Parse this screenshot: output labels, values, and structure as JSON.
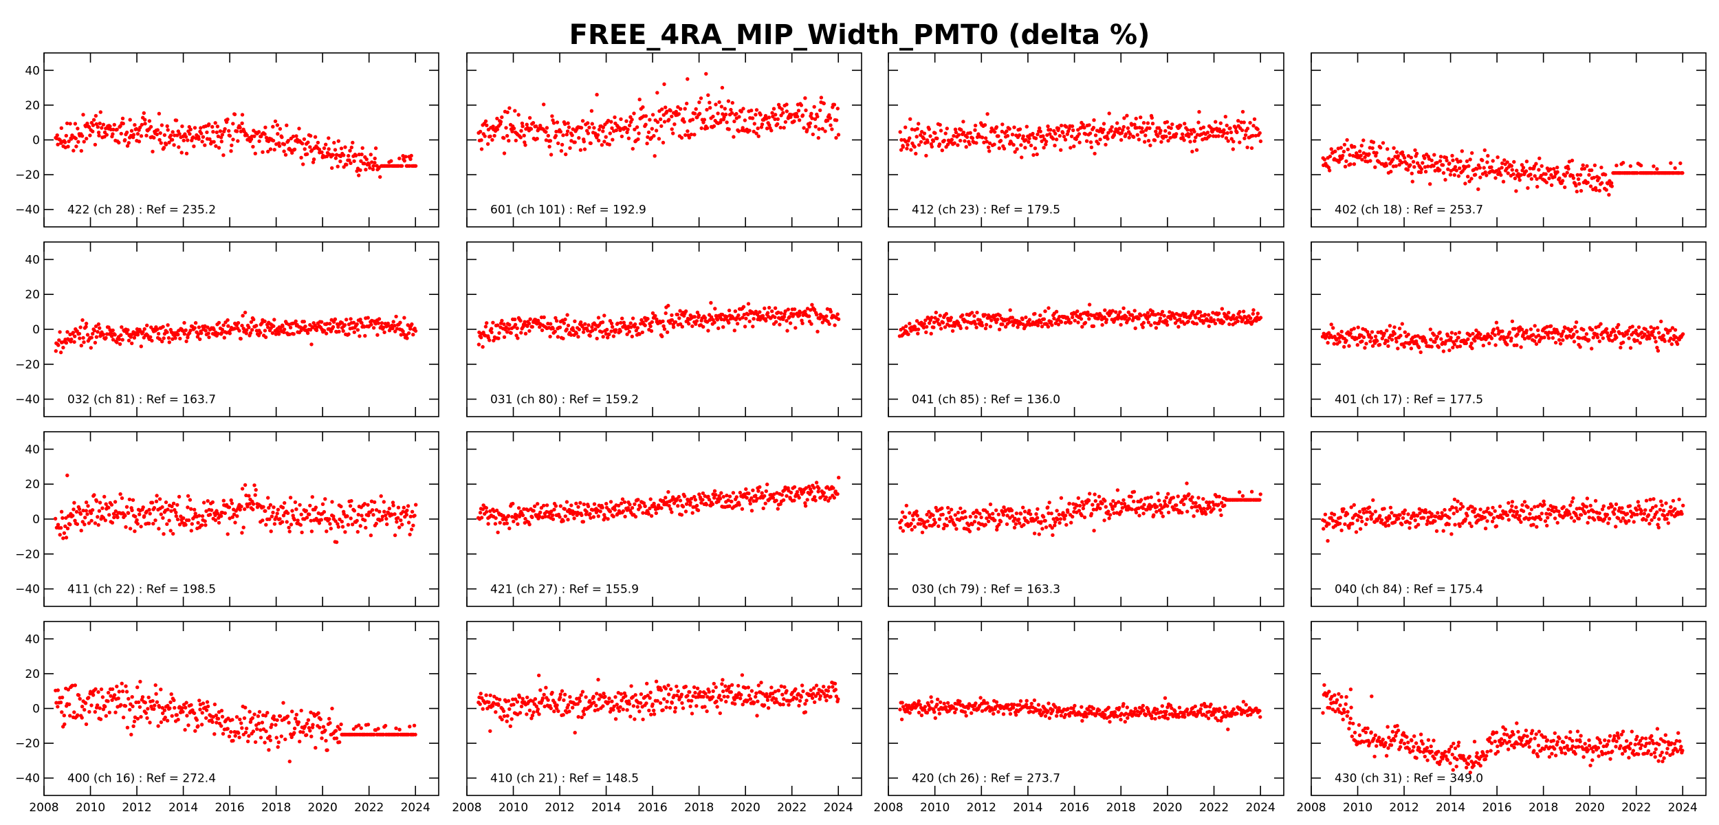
{
  "chart_data": {
    "type": "scatter",
    "title": "FREE_4RA_MIP_Width_PMT0 (delta %)",
    "layout": "4x4 grid of subplots",
    "xlabel": "",
    "ylabel": "",
    "xlim": [
      2008,
      2025
    ],
    "ylim": [
      -50,
      50
    ],
    "xticks": [
      2008,
      2010,
      2012,
      2014,
      2016,
      2018,
      2020,
      2022,
      2024
    ],
    "yticks": [
      -40,
      -20,
      0,
      20,
      40
    ],
    "xtick_labels": [
      "2008",
      "2010",
      "2012",
      "2014",
      "2016",
      "2018",
      "2020",
      "2022",
      "2024"
    ],
    "ytick_labels": [
      "−40",
      "−20",
      "0",
      "20",
      "40"
    ],
    "grid": false,
    "marker_color": "#ff0000",
    "x_start": 2008.5,
    "x_end": 2024.0,
    "panels": [
      {
        "label": "422 (ch 28) : Ref = 235.2",
        "trend_x": [
          2008.5,
          2010,
          2012,
          2014,
          2016,
          2018,
          2020,
          2021,
          2022,
          2024
        ],
        "trend_y": [
          2,
          6,
          4,
          2,
          3,
          0,
          -6,
          -10,
          -13,
          -15
        ],
        "spread": 4.5,
        "flat_from": 2022.5,
        "flat_value": -15
      },
      {
        "label": "601 (ch 101) : Ref = 192.9",
        "trend_x": [
          2008.5,
          2010,
          2012,
          2014,
          2016,
          2018,
          2019,
          2020,
          2022,
          2024
        ],
        "trend_y": [
          5,
          5,
          4,
          5,
          9,
          13,
          15,
          11,
          13,
          12
        ],
        "spread": 5.5,
        "outliers": [
          [
            2013.6,
            26
          ],
          [
            2016.5,
            32
          ],
          [
            2017.5,
            35
          ],
          [
            2018.3,
            38
          ],
          [
            2019.0,
            30
          ]
        ]
      },
      {
        "label": "412 (ch 23) : Ref = 179.5",
        "trend_x": [
          2008.5,
          2010,
          2012,
          2014,
          2016,
          2018,
          2020,
          2022,
          2024
        ],
        "trend_y": [
          0,
          1,
          2,
          1,
          3,
          4,
          5,
          4,
          3
        ],
        "spread": 4.5
      },
      {
        "label": "402 (ch 18) : Ref = 253.7",
        "trend_x": [
          2008.5,
          2009.5,
          2010.5,
          2012,
          2014,
          2016,
          2018,
          2020,
          2020.9
        ],
        "trend_y": [
          -12,
          -6,
          -7,
          -13,
          -15,
          -16,
          -20,
          -22,
          -24
        ],
        "spread": 4.0,
        "flat_from": 2021.0,
        "flat_value": -19
      },
      {
        "label": "032 (ch 81) : Ref = 163.7",
        "trend_x": [
          2008.5,
          2009,
          2010,
          2012,
          2014,
          2016,
          2018,
          2020,
          2022,
          2024
        ],
        "trend_y": [
          -9,
          -4,
          -3,
          -3,
          -2,
          0,
          1,
          1,
          2,
          0
        ],
        "spread": 3.0
      },
      {
        "label": "031 (ch 80) : Ref = 159.2",
        "trend_x": [
          2008.5,
          2009,
          2010,
          2012,
          2014,
          2015.5,
          2016,
          2018,
          2020,
          2022,
          2024
        ],
        "trend_y": [
          -5,
          0,
          2,
          1,
          0,
          1,
          4,
          6,
          7,
          8,
          7
        ],
        "spread": 3.0
      },
      {
        "label": "041 (ch 85) : Ref = 136.0",
        "trend_x": [
          2008.5,
          2009,
          2010,
          2012,
          2014,
          2016,
          2018,
          2020,
          2022,
          2024
        ],
        "trend_y": [
          -4,
          1,
          4,
          5,
          4,
          7,
          7,
          6,
          6,
          6
        ],
        "spread": 2.5
      },
      {
        "label": "401 (ch 17) : Ref = 177.5",
        "trend_x": [
          2008.5,
          2010,
          2012,
          2014,
          2016,
          2018,
          2020,
          2022,
          2024
        ],
        "trend_y": [
          -5,
          -4,
          -5,
          -7,
          -4,
          -3,
          -3,
          -3,
          -4
        ],
        "spread": 3.0
      },
      {
        "label": "411 (ch 22) : Ref = 198.5",
        "trend_x": [
          2008.5,
          2010,
          2012,
          2014,
          2016,
          2017,
          2018,
          2020,
          2022,
          2024
        ],
        "trend_y": [
          -4,
          4,
          3,
          2,
          3,
          8,
          3,
          1,
          3,
          2
        ],
        "spread": 5.0,
        "outliers": [
          [
            2009.0,
            25
          ]
        ]
      },
      {
        "label": "421 (ch 27) : Ref = 155.9",
        "trend_x": [
          2008.5,
          2010,
          2012,
          2014,
          2016,
          2018,
          2020,
          2022,
          2024
        ],
        "trend_y": [
          3,
          2,
          4,
          5,
          7,
          10,
          12,
          14,
          15
        ],
        "spread": 3.0
      },
      {
        "label": "030 (ch 79) : Ref = 163.3",
        "trend_x": [
          2008.5,
          2010,
          2012,
          2014,
          2015,
          2016,
          2018,
          2020,
          2022,
          2024
        ],
        "trend_y": [
          0,
          1,
          1,
          0,
          0,
          6,
          7,
          9,
          8,
          10
        ],
        "spread": 3.5,
        "flat_from": 2022.5,
        "flat_value": 11
      },
      {
        "label": "040 (ch 84) : Ref = 175.4",
        "trend_x": [
          2008.5,
          2010,
          2012,
          2014,
          2016,
          2018,
          2020,
          2022,
          2024
        ],
        "trend_y": [
          -2,
          1,
          1,
          1,
          2,
          3,
          4,
          3,
          5
        ],
        "spread": 3.5
      },
      {
        "label": "400 (ch 16) : Ref = 272.4",
        "trend_x": [
          2008.5,
          2010,
          2012,
          2014,
          2015.5,
          2016,
          2018,
          2020,
          2020.8
        ],
        "trend_y": [
          2,
          4,
          1,
          0,
          -4,
          -12,
          -10,
          -12,
          -13
        ],
        "spread": 6.0,
        "flat_from": 2020.8,
        "flat_value": -15
      },
      {
        "label": "410 (ch 21) : Ref = 148.5",
        "trend_x": [
          2008.5,
          2010,
          2012,
          2014,
          2016,
          2018,
          2020,
          2022,
          2024
        ],
        "trend_y": [
          2,
          2,
          3,
          3,
          5,
          6,
          8,
          6,
          8
        ],
        "spread": 4.5,
        "outliers": [
          [
            2011.1,
            19
          ],
          [
            2009.0,
            -13
          ]
        ]
      },
      {
        "label": "420 (ch 26) : Ref = 273.7",
        "trend_x": [
          2008.5,
          2010,
          2012,
          2014,
          2016,
          2018,
          2020,
          2022,
          2024
        ],
        "trend_y": [
          0,
          1,
          1,
          0,
          -2,
          -3,
          -2,
          -2,
          -1
        ],
        "spread": 2.2,
        "outliers": [
          [
            2019.9,
            6
          ],
          [
            2022.6,
            -12
          ]
        ]
      },
      {
        "label": "430 (ch 31) : Ref = 349.0",
        "trend_x": [
          2008.5,
          2009.3,
          2010,
          2011,
          2012,
          2013,
          2014,
          2015.3,
          2015.6,
          2016,
          2018,
          2020,
          2022,
          2024
        ],
        "trend_y": [
          3,
          3,
          -17,
          -18,
          -20,
          -24,
          -27,
          -29,
          -20,
          -18,
          -20,
          -22,
          -22,
          -21
        ],
        "spread": 4.0,
        "outliers": [
          [
            2009.7,
            11
          ],
          [
            2010.6,
            7
          ]
        ]
      }
    ]
  }
}
